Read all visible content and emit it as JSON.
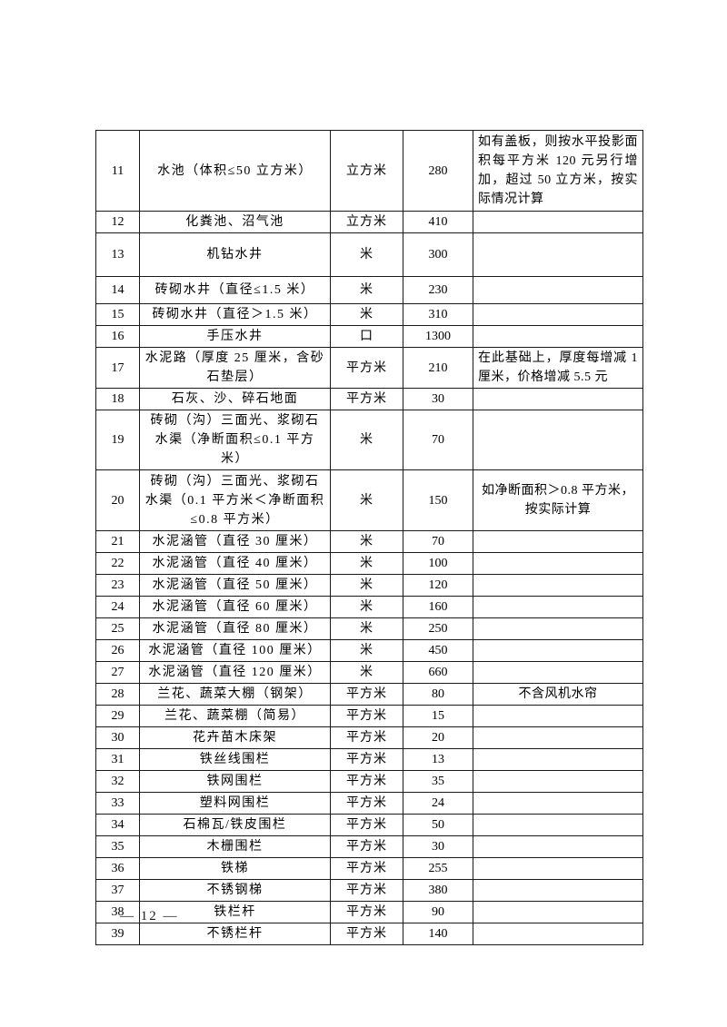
{
  "page": {
    "footer_page_number": "— 12 —"
  },
  "table": {
    "rows": [
      {
        "no": "11",
        "item": "水池（体积≤50 立方米）",
        "unit": "立方米",
        "price": "280",
        "remark": "如有盖板，则按水平投影面积每平方米 120 元另行增加，超过 50 立方米，按实际情况计算"
      },
      {
        "no": "12",
        "item": "化粪池、沼气池",
        "unit": "立方米",
        "price": "410",
        "remark": ""
      },
      {
        "no": "13",
        "item": "机钻水井",
        "unit": "米",
        "price": "300",
        "remark": ""
      },
      {
        "no": "14",
        "item": "砖砌水井（直径≤1.5 米）",
        "unit": "米",
        "price": "230",
        "remark": ""
      },
      {
        "no": "15",
        "item": "砖砌水井（直径＞1.5 米）",
        "unit": "米",
        "price": "310",
        "remark": ""
      },
      {
        "no": "16",
        "item": "手压水井",
        "unit": "口",
        "price": "1300",
        "remark": ""
      },
      {
        "no": "17",
        "item": "水泥路（厚度 25 厘米，含砂石垫层）",
        "unit": "平方米",
        "price": "210",
        "remark": "在此基础上，厚度每增减 1 厘米，价格增减 5.5 元"
      },
      {
        "no": "18",
        "item": "石灰、沙、碎石地面",
        "unit": "平方米",
        "price": "30",
        "remark": ""
      },
      {
        "no": "19",
        "item": "砖砌（沟）三面光、浆砌石水渠（净断面积≤0.1 平方米）",
        "unit": "米",
        "price": "70",
        "remark": ""
      },
      {
        "no": "20",
        "item": "砖砌（沟）三面光、浆砌石水渠（0.1 平方米＜净断面积≤0.8 平方米）",
        "unit": "米",
        "price": "150",
        "remark": "如净断面积＞0.8 平方米，按实际计算"
      },
      {
        "no": "21",
        "item": "水泥涵管（直径 30 厘米）",
        "unit": "米",
        "price": "70",
        "remark": ""
      },
      {
        "no": "22",
        "item": "水泥涵管（直径 40 厘米）",
        "unit": "米",
        "price": "100",
        "remark": ""
      },
      {
        "no": "23",
        "item": "水泥涵管（直径 50 厘米）",
        "unit": "米",
        "price": "120",
        "remark": ""
      },
      {
        "no": "24",
        "item": "水泥涵管（直径 60 厘米）",
        "unit": "米",
        "price": "160",
        "remark": ""
      },
      {
        "no": "25",
        "item": "水泥涵管（直径 80 厘米）",
        "unit": "米",
        "price": "250",
        "remark": ""
      },
      {
        "no": "26",
        "item": "水泥涵管（直径 100 厘米）",
        "unit": "米",
        "price": "450",
        "remark": ""
      },
      {
        "no": "27",
        "item": "水泥涵管（直径 120 厘米）",
        "unit": "米",
        "price": "660",
        "remark": ""
      },
      {
        "no": "28",
        "item": "兰花、蔬菜大棚（钢架）",
        "unit": "平方米",
        "price": "80",
        "remark": "不含风机水帘"
      },
      {
        "no": "29",
        "item": "兰花、蔬菜棚（简易）",
        "unit": "平方米",
        "price": "15",
        "remark": ""
      },
      {
        "no": "30",
        "item": "花卉苗木床架",
        "unit": "平方米",
        "price": "20",
        "remark": ""
      },
      {
        "no": "31",
        "item": "铁丝线围栏",
        "unit": "平方米",
        "price": "13",
        "remark": ""
      },
      {
        "no": "32",
        "item": "铁网围栏",
        "unit": "平方米",
        "price": "35",
        "remark": ""
      },
      {
        "no": "33",
        "item": "塑料网围栏",
        "unit": "平方米",
        "price": "24",
        "remark": ""
      },
      {
        "no": "34",
        "item": "石棉瓦/铁皮围栏",
        "unit": "平方米",
        "price": "50",
        "remark": ""
      },
      {
        "no": "35",
        "item": "木栅围栏",
        "unit": "平方米",
        "price": "30",
        "remark": ""
      },
      {
        "no": "36",
        "item": "铁梯",
        "unit": "平方米",
        "price": "255",
        "remark": ""
      },
      {
        "no": "37",
        "item": "不锈钢梯",
        "unit": "平方米",
        "price": "380",
        "remark": ""
      },
      {
        "no": "38",
        "item": "铁栏杆",
        "unit": "平方米",
        "price": "90",
        "remark": ""
      },
      {
        "no": "39",
        "item": "不锈栏杆",
        "unit": "平方米",
        "price": "140",
        "remark": ""
      }
    ]
  }
}
